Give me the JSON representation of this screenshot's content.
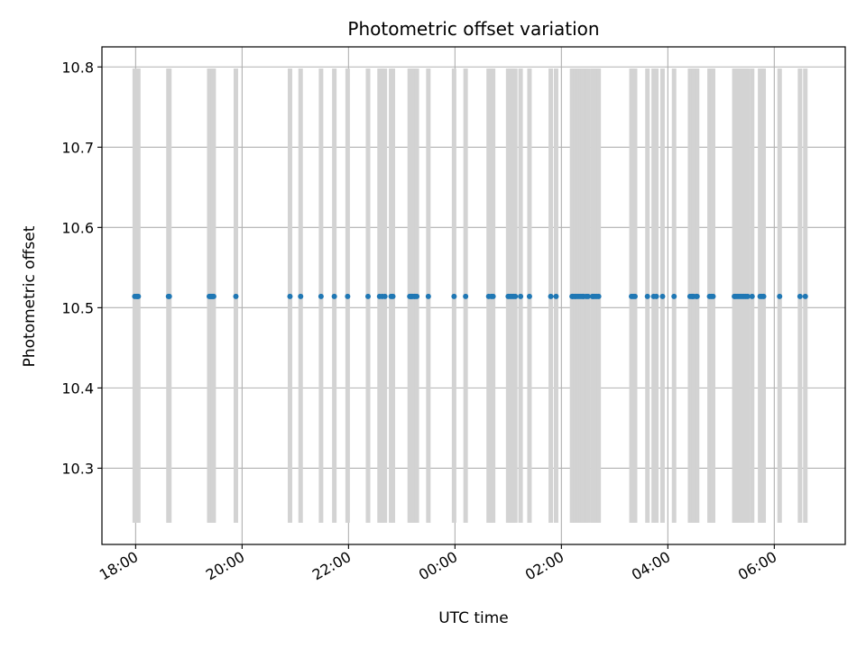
{
  "chart_data": {
    "type": "scatter",
    "title": "Photometric offset variation",
    "xlabel": "UTC time",
    "ylabel": "Photometric offset",
    "x_axis_type": "time",
    "x_start_date": "2022-01-01",
    "xlim": [
      "2022-01-01T17:22",
      "2022-01-02T07:20"
    ],
    "ylim": [
      10.205,
      10.825
    ],
    "grid": true,
    "legend": "none",
    "x_ticks": [
      "18:00",
      "20:00",
      "22:00",
      "00:00",
      "02:00",
      "04:00",
      "06:00"
    ],
    "y_ticks": [
      "10.3",
      "10.4",
      "10.5",
      "10.6",
      "10.7",
      "10.8"
    ],
    "bands": {
      "color": "#d3d3d3",
      "y_range": [
        10.232,
        10.798
      ],
      "times": [
        "17:59",
        "18:01",
        "18:02",
        "18:03",
        "18:37",
        "18:38",
        "19:23",
        "19:24",
        "19:25",
        "19:26",
        "19:27",
        "19:28",
        "19:53",
        "20:54",
        "21:06",
        "21:29",
        "21:44",
        "21:59",
        "22:22",
        "22:35",
        "22:38",
        "22:41",
        "22:48",
        "22:50",
        "23:09",
        "23:10",
        "23:11",
        "23:12",
        "23:14",
        "23:15",
        "23:17",
        "23:30",
        "23:59",
        "00:12",
        "00:38",
        "00:41",
        "00:43",
        "01:00",
        "01:02",
        "01:04",
        "01:06",
        "01:08",
        "01:14",
        "01:24",
        "01:48",
        "01:54",
        "02:12",
        "02:13",
        "02:15",
        "02:16",
        "02:18",
        "02:20",
        "02:22",
        "02:24",
        "02:25",
        "02:28",
        "02:30",
        "02:35",
        "02:36",
        "02:38",
        "02:40",
        "02:42",
        "03:19",
        "03:21",
        "03:23",
        "03:37",
        "03:44",
        "03:47",
        "03:54",
        "04:07",
        "04:25",
        "04:27",
        "04:28",
        "04:29",
        "04:32",
        "04:33",
        "04:47",
        "04:49",
        "04:51",
        "05:15",
        "05:16",
        "05:18",
        "05:20",
        "05:22",
        "05:24",
        "05:26",
        "05:28",
        "05:30",
        "05:35",
        "05:44",
        "05:46",
        "05:48",
        "06:06",
        "06:29",
        "06:35"
      ]
    },
    "series": [
      {
        "color": "#1f77b4",
        "x": [
          "17:59",
          "18:01",
          "18:02",
          "18:03",
          "18:37",
          "18:38",
          "19:23",
          "19:24",
          "19:25",
          "19:26",
          "19:27",
          "19:28",
          "19:53",
          "20:54",
          "21:06",
          "21:29",
          "21:44",
          "21:59",
          "22:22",
          "22:35",
          "22:38",
          "22:41",
          "22:48",
          "22:50",
          "23:09",
          "23:10",
          "23:11",
          "23:12",
          "23:14",
          "23:15",
          "23:17",
          "23:30",
          "23:59",
          "00:12",
          "00:38",
          "00:41",
          "00:43",
          "01:00",
          "01:02",
          "01:04",
          "01:06",
          "01:08",
          "01:14",
          "01:24",
          "01:48",
          "01:54",
          "02:12",
          "02:13",
          "02:15",
          "02:16",
          "02:18",
          "02:20",
          "02:22",
          "02:24",
          "02:25",
          "02:28",
          "02:30",
          "02:35",
          "02:36",
          "02:38",
          "02:40",
          "02:42",
          "03:19",
          "03:21",
          "03:23",
          "03:37",
          "03:44",
          "03:47",
          "03:54",
          "04:07",
          "04:25",
          "04:27",
          "04:28",
          "04:29",
          "04:32",
          "04:33",
          "04:47",
          "04:49",
          "04:51",
          "05:15",
          "05:16",
          "05:18",
          "05:20",
          "05:22",
          "05:24",
          "05:26",
          "05:28",
          "05:30",
          "05:35",
          "05:44",
          "05:46",
          "05:48",
          "06:06",
          "06:29",
          "06:35"
        ],
        "y": 10.514
      }
    ]
  }
}
